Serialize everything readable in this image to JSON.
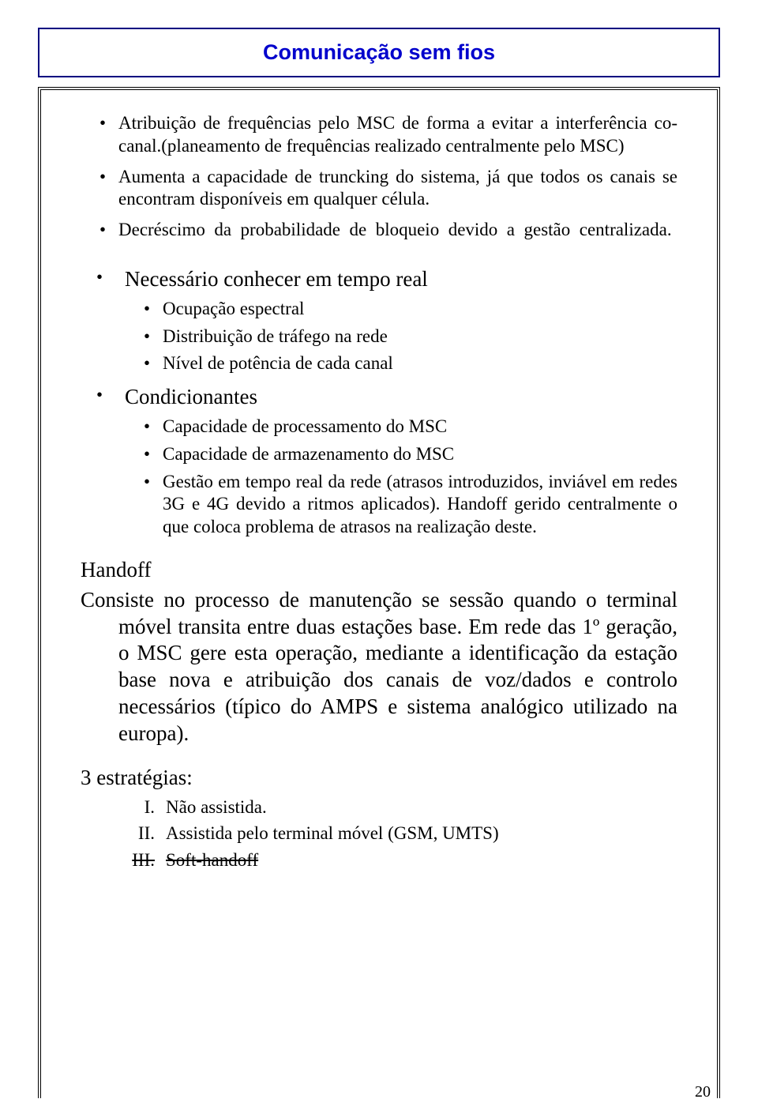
{
  "title": "Comunicação sem fios",
  "section1": {
    "item1": "Atribuição de frequências pelo MSC de forma a evitar a interferência co-canal.(planeamento de frequências realizado centralmente pelo MSC)",
    "item2": "Aumenta a capacidade de truncking do sistema, já que todos os canais se encontram disponíveis em qualquer célula.",
    "item3": "Decréscimo da probabilidade de bloqueio devido a gestão centralizada."
  },
  "section2": {
    "heading1": "Necessário conhecer em tempo real",
    "sub1": {
      "a": "Ocupação espectral",
      "b": "Distribuição de tráfego na rede",
      "c": "Nível de potência de cada canal"
    },
    "heading2": "Condicionantes",
    "sub2": {
      "a": "Capacidade de processamento do MSC",
      "b": "Capacidade de armazenamento do MSC",
      "c": "Gestão em tempo real da rede (atrasos introduzidos, inviável em redes 3G e 4G devido a ritmos aplicados). Handoff gerido centralmente o que coloca problema de atrasos na realização deste."
    }
  },
  "handoff": {
    "heading": "Handoff",
    "body": "Consiste no processo de manutenção se sessão quando o terminal móvel transita entre duas estações base. Em rede das 1º geração, o MSC gere esta operação, mediante a identificação da estação base nova e atribuição dos canais de voz/dados e controlo necessários (típico do AMPS e sistema analógico utilizado na europa)."
  },
  "strategies": {
    "heading": "3 estratégias:",
    "i": {
      "num": "I.",
      "text": "Não assistida."
    },
    "ii": {
      "num": "II.",
      "text": "Assistida pelo terminal móvel (GSM, UMTS)"
    },
    "iii": {
      "num": "III.",
      "text": "Soft-handoff"
    }
  },
  "page": "20"
}
